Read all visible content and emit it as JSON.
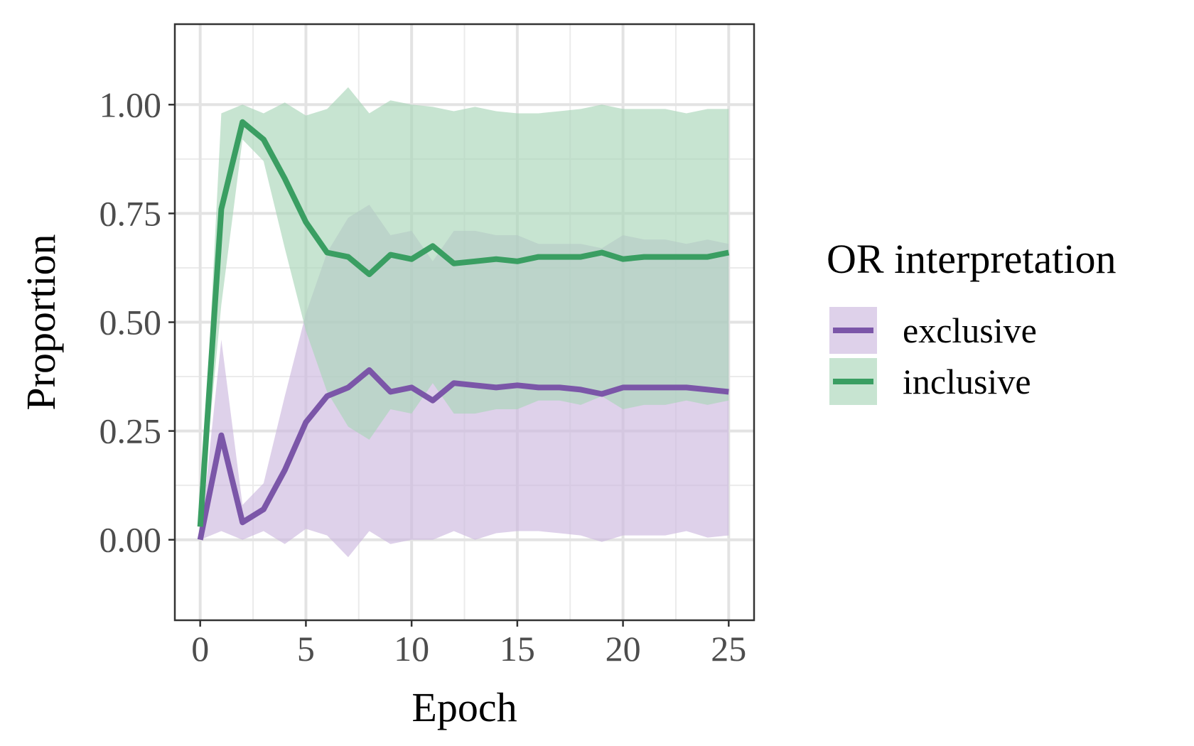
{
  "chart_data": {
    "type": "line",
    "title": "",
    "xlabel": "Epoch",
    "ylabel": "Proportion",
    "xlim": [
      -1.2,
      26.2
    ],
    "ylim": [
      -0.185,
      1.185
    ],
    "x_ticks": [
      0,
      5,
      10,
      15,
      20,
      25
    ],
    "x_tick_labels": [
      "0",
      "5",
      "10",
      "15",
      "20",
      "25"
    ],
    "y_ticks": [
      0,
      0.25,
      0.5,
      0.75,
      1
    ],
    "y_tick_labels": [
      "0.00",
      "0.25",
      "0.50",
      "0.75",
      "1.00"
    ],
    "grid": true,
    "legend": {
      "title": "OR interpretation",
      "position": "right"
    },
    "x": [
      0,
      1,
      2,
      3,
      4,
      5,
      6,
      7,
      8,
      9,
      10,
      11,
      12,
      13,
      14,
      15,
      16,
      17,
      18,
      19,
      20,
      21,
      22,
      23,
      24,
      25
    ],
    "series": [
      {
        "name": "exclusive",
        "color": "#7b56a8",
        "fill": "#cdb8de",
        "values": [
          0.0,
          0.24,
          0.04,
          0.07,
          0.16,
          0.27,
          0.33,
          0.35,
          0.39,
          0.34,
          0.35,
          0.32,
          0.36,
          0.355,
          0.35,
          0.355,
          0.35,
          0.35,
          0.345,
          0.335,
          0.35,
          0.35,
          0.35,
          0.35,
          0.345,
          0.34
        ],
        "lower": [
          0.0,
          0.02,
          0.0,
          0.02,
          -0.01,
          0.025,
          0.01,
          -0.04,
          0.02,
          -0.01,
          0.0,
          0.0,
          0.02,
          0.0,
          0.015,
          0.02,
          0.02,
          0.015,
          0.01,
          -0.005,
          0.01,
          0.01,
          0.01,
          0.02,
          0.005,
          0.01
        ],
        "upper": [
          0.0,
          0.46,
          0.08,
          0.13,
          0.33,
          0.52,
          0.66,
          0.74,
          0.77,
          0.7,
          0.71,
          0.64,
          0.71,
          0.71,
          0.7,
          0.7,
          0.68,
          0.68,
          0.68,
          0.67,
          0.7,
          0.69,
          0.69,
          0.68,
          0.69,
          0.68
        ]
      },
      {
        "name": "inclusive",
        "color": "#3a9e62",
        "fill": "#a9d6b8",
        "values": [
          0.03,
          0.76,
          0.96,
          0.92,
          0.83,
          0.73,
          0.66,
          0.65,
          0.61,
          0.655,
          0.645,
          0.675,
          0.635,
          0.64,
          0.645,
          0.64,
          0.65,
          0.65,
          0.65,
          0.66,
          0.645,
          0.65,
          0.65,
          0.65,
          0.65,
          0.66
        ],
        "lower": [
          0.03,
          0.54,
          0.92,
          0.87,
          0.67,
          0.48,
          0.34,
          0.26,
          0.23,
          0.3,
          0.29,
          0.36,
          0.29,
          0.29,
          0.3,
          0.3,
          0.32,
          0.32,
          0.31,
          0.33,
          0.3,
          0.31,
          0.31,
          0.32,
          0.31,
          0.32
        ],
        "upper": [
          0.03,
          0.98,
          1.0,
          0.98,
          1.005,
          0.975,
          0.99,
          1.04,
          0.98,
          1.01,
          1.0,
          0.995,
          0.985,
          0.995,
          0.985,
          0.98,
          0.98,
          0.985,
          0.99,
          1.0,
          0.99,
          0.99,
          0.99,
          0.98,
          0.99,
          0.99
        ]
      }
    ]
  }
}
